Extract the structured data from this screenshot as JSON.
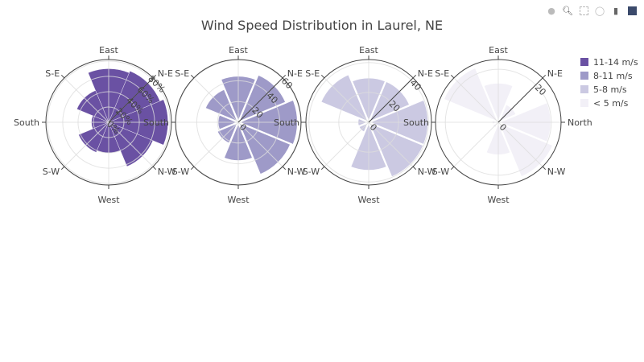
{
  "modebar": {
    "icons": [
      "camera-icon",
      "zoom-icon",
      "select-box-icon",
      "lasso-icon",
      "hover-compare-icon",
      "plotly-logo-icon"
    ]
  },
  "chart_data": {
    "type": "barpolar",
    "title": "Wind Speed Distribution in Laurel, NE",
    "theta": [
      "North",
      "N-E",
      "East",
      "S-E",
      "South",
      "S-W",
      "West",
      "N-W"
    ],
    "angular_direction": "counterclockwise",
    "angular_rotation": "North at right",
    "legend": "top-right",
    "subplots": [
      {
        "series": {
          "name": "11-14 m/s",
          "color": "#6a51a3",
          "values": [
            77.5,
            72.5,
            70.0,
            45.0,
            22.5,
            42.5,
            40.0,
            62.5
          ]
        },
        "radial_range": [
          0,
          82
        ],
        "radial_ticks": [
          0,
          20,
          40,
          60,
          80
        ],
        "tick_suffix": "%"
      },
      {
        "series": {
          "name": "8-11 m/s",
          "color": "#9e9ac8",
          "values": [
            57.5,
            50.0,
            45.0,
            35.0,
            20.0,
            22.5,
            37.5,
            55.0
          ]
        },
        "radial_range": [
          0,
          60.5
        ],
        "radial_ticks": [
          0,
          20,
          40,
          60
        ],
        "tick_suffix": ""
      },
      {
        "series": {
          "name": "5-8 m/s",
          "color": "#cbc9e2",
          "values": [
            40.0,
            30.0,
            30.0,
            35.0,
            7.5,
            7.5,
            32.5,
            40.0
          ]
        },
        "radial_range": [
          0,
          42
        ],
        "radial_ticks": [
          0,
          20,
          40
        ],
        "tick_suffix": ""
      },
      {
        "series": {
          "name": "< 5 m/s",
          "color": "#f2f0f7",
          "values": [
            20.0,
            7.5,
            15.0,
            22.5,
            2.5,
            2.5,
            12.5,
            22.5
          ]
        },
        "radial_range": [
          0,
          23.7
        ],
        "radial_ticks": [
          0,
          20
        ],
        "tick_suffix": ""
      }
    ]
  }
}
